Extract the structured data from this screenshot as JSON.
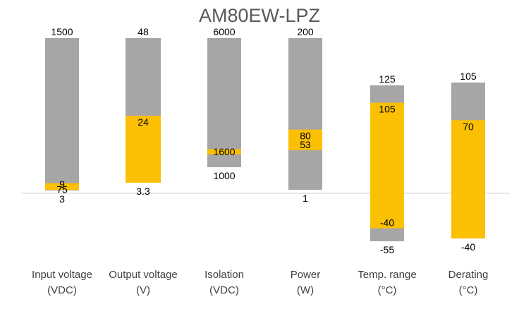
{
  "chart_data": {
    "type": "bar",
    "title": "AM80EW-LPZ",
    "colors": {
      "range": "#a6a6a6",
      "highlight": "#fbc003",
      "baseline": "#d9d9d9"
    },
    "categories": [
      {
        "line1": "Input voltage",
        "line2": "(VDC)",
        "min": 3,
        "max": 1500,
        "hl_low": 9,
        "hl_high": 75,
        "labels": {
          "min": "3",
          "max": "1500",
          "hl_low": "9",
          "hl_high": "75"
        }
      },
      {
        "line1": "Output voltage",
        "line2": "(V)",
        "min": 3.3,
        "max": 48,
        "hl_low": 3.3,
        "hl_high": 24,
        "labels": {
          "min": "3.3",
          "max": "48",
          "hl_high": "24"
        }
      },
      {
        "line1": "Isolation",
        "line2": "(VDC)",
        "min": 1000,
        "max": 6000,
        "hl_low": 1500,
        "hl_high": 1700,
        "labels": {
          "min": "1000",
          "max": "6000",
          "hl_mid": "1600"
        }
      },
      {
        "line1": "Power",
        "line2": "(W)",
        "min": 1,
        "max": 200,
        "hl_low": 53,
        "hl_high": 80,
        "labels": {
          "min": "1",
          "max": "200",
          "hl_low": "53",
          "hl_high": "80"
        }
      },
      {
        "line1": "Temp. range",
        "line2": "(°C)",
        "min": -55,
        "max": 125,
        "hl_low": -40,
        "hl_high": 105,
        "labels": {
          "min": "-55",
          "max": "125",
          "hl_low": "-40",
          "hl_high": "105"
        }
      },
      {
        "line1": "Derating",
        "line2": "(°C)",
        "min": -40,
        "max": 105,
        "hl_low": -40,
        "hl_high": 70,
        "labels": {
          "min": "-40",
          "max": "105",
          "hl_high": "70"
        }
      }
    ]
  }
}
